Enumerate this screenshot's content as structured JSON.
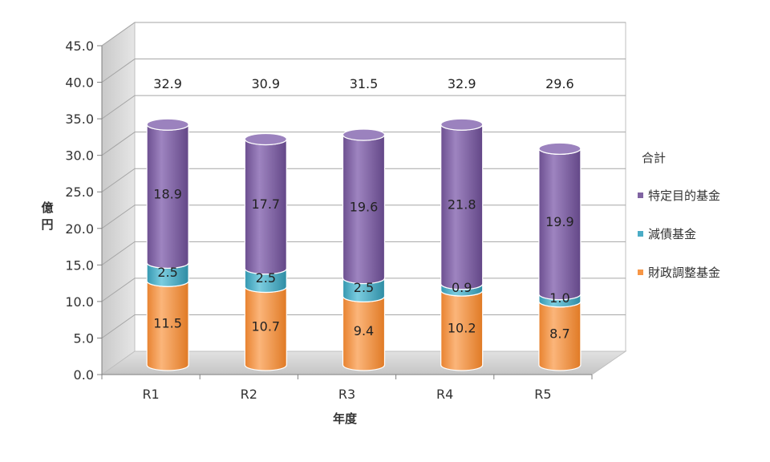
{
  "chart_data": {
    "type": "bar",
    "stacked": true,
    "style": "3d-cylinder",
    "categories": [
      "R1",
      "R2",
      "R3",
      "R4",
      "R5"
    ],
    "series": [
      {
        "name": "財政調整基金",
        "color": "#F79646",
        "values": [
          11.5,
          10.7,
          9.4,
          10.2,
          8.7
        ]
      },
      {
        "name": "減債基金",
        "color": "#4BACC6",
        "values": [
          2.5,
          2.5,
          2.5,
          0.9,
          1.0
        ]
      },
      {
        "name": "特定目的基金",
        "color": "#8064A2",
        "values": [
          18.9,
          17.7,
          19.6,
          21.8,
          19.9
        ]
      }
    ],
    "totals": [
      32.9,
      30.9,
      31.5,
      32.9,
      29.6
    ],
    "total_label": "合計",
    "xlabel": "年度",
    "ylabel": "億円",
    "ylim": [
      0,
      45
    ],
    "yticks": [
      "0.0",
      "5.0",
      "10.0",
      "15.0",
      "20.0",
      "25.0",
      "30.0",
      "35.0",
      "40.0",
      "45.0"
    ],
    "grid": true,
    "legend_position": "right"
  }
}
